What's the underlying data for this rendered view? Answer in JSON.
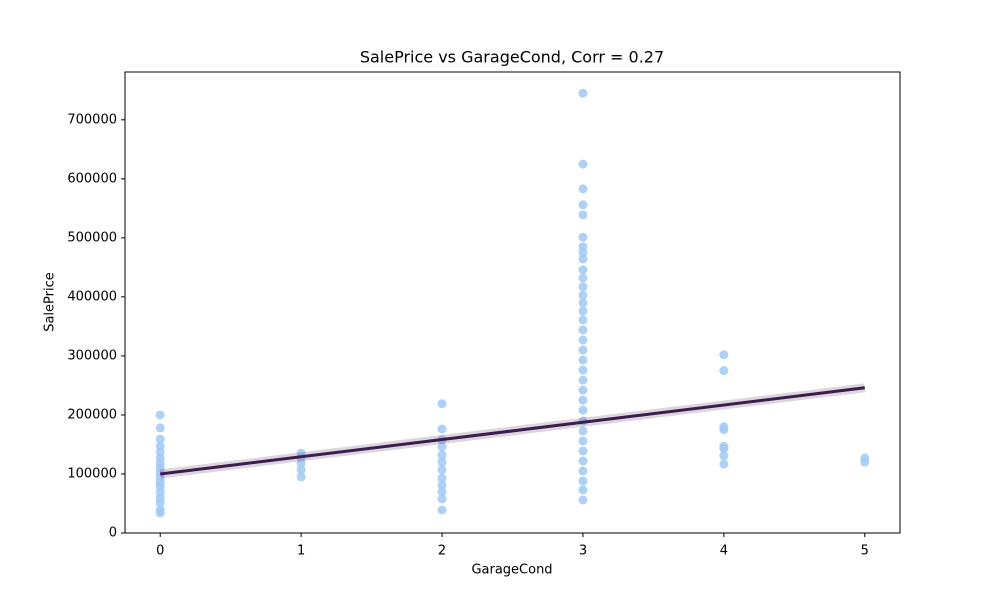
{
  "chart_data": {
    "type": "scatter",
    "title": "SalePrice vs GarageCond, Corr = 0.27",
    "x_label": "GarageCond",
    "y_label": "SalePrice",
    "color": "#a1c9f4",
    "x": [
      0,
      0,
      0,
      0,
      0,
      0,
      0,
      0,
      0,
      0,
      0,
      0,
      0,
      0,
      0,
      0,
      0,
      1,
      1,
      1,
      1,
      1,
      2,
      2,
      2,
      2,
      2,
      2,
      2,
      2,
      2,
      2,
      2,
      2,
      3,
      3,
      3,
      3,
      3,
      3,
      3,
      3,
      3,
      3,
      3,
      3,
      3,
      3,
      3,
      3,
      3,
      3,
      3,
      3,
      3,
      3,
      3,
      3,
      3,
      3,
      3,
      3,
      3,
      3,
      3,
      3,
      3,
      3,
      4,
      4,
      4,
      4,
      4,
      4,
      4,
      4,
      5,
      5
    ],
    "values": [
      200000,
      178000,
      159000,
      147000,
      137000,
      127000,
      118000,
      110000,
      102000,
      93000,
      85000,
      78000,
      68000,
      59000,
      51000,
      39000,
      34000,
      135000,
      127000,
      118000,
      107000,
      95000,
      219000,
      176000,
      158000,
      146000,
      132000,
      120000,
      107000,
      93000,
      81000,
      70000,
      58000,
      39000,
      745000,
      625000,
      583000,
      556000,
      539000,
      501000,
      485000,
      475000,
      464000,
      446000,
      432000,
      417000,
      403000,
      390000,
      376000,
      361000,
      344000,
      327000,
      310000,
      293000,
      276000,
      259000,
      242000,
      225000,
      208000,
      190000,
      173000,
      156000,
      139000,
      122000,
      105000,
      88000,
      73000,
      56000,
      302000,
      275000,
      180000,
      175000,
      147000,
      143000,
      131000,
      117000,
      127000,
      120000
    ],
    "regression_line": {
      "x": [
        0,
        5
      ],
      "values": [
        100000,
        246000
      ],
      "color": "#3d1c4f"
    },
    "xlim": [
      -0.25,
      5.25
    ],
    "xticks": [
      0,
      1,
      2,
      3,
      4,
      5
    ],
    "ylim": [
      0,
      781000
    ],
    "yticks": [
      0,
      100000,
      200000,
      300000,
      400000,
      500000,
      600000,
      700000
    ]
  }
}
